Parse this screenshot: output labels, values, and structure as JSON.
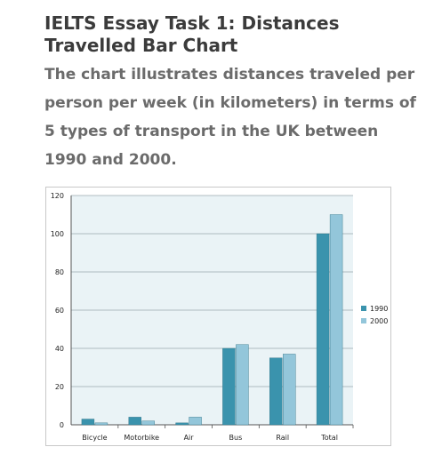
{
  "header": {
    "title": "IELTS Essay Task 1: Distances Travelled Bar Chart",
    "subtitle": "The chart illustrates distances traveled per person per week (in kilometers) in terms of 5 types of transport in the UK between 1990 and 2000."
  },
  "chart_data": {
    "type": "bar",
    "categories": [
      "Bicycle",
      "Motorbike",
      "Air",
      "Bus",
      "Rail",
      "Total"
    ],
    "series": [
      {
        "name": "1990",
        "values": [
          3,
          4,
          1,
          40,
          35,
          100
        ],
        "color": "#3a93ad"
      },
      {
        "name": "2000",
        "values": [
          1,
          2,
          4,
          42,
          37,
          110
        ],
        "color": "#93c6da"
      }
    ],
    "ylim": [
      0,
      120
    ],
    "yticks": [
      0,
      20,
      40,
      60,
      80,
      100,
      120
    ],
    "grid": true,
    "legend_position": "right",
    "plot_background": "#eaf3f6"
  }
}
